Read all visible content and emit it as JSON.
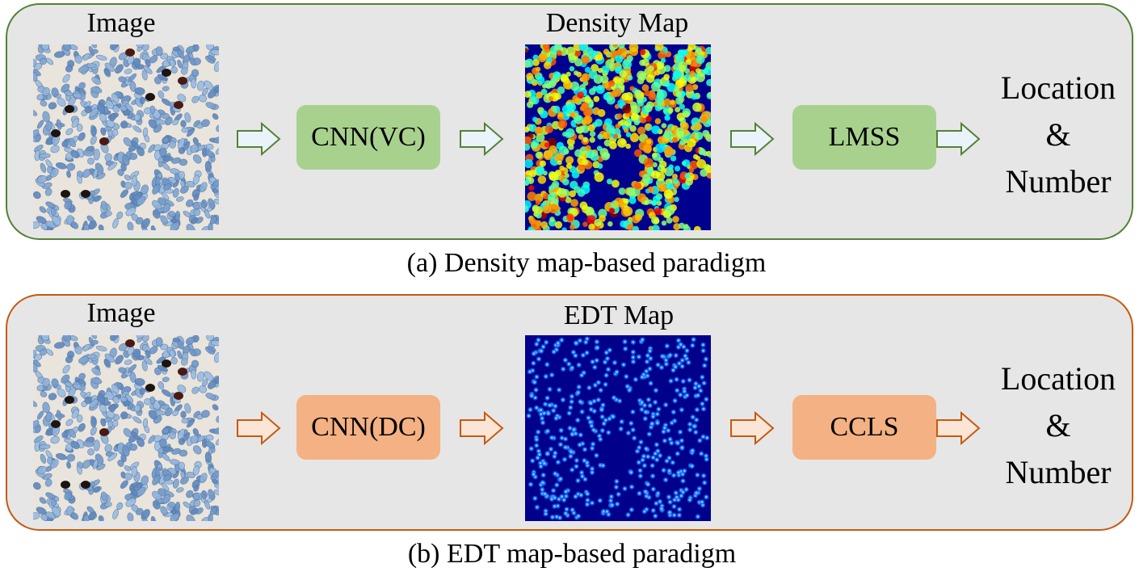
{
  "panel_a": {
    "image_label": "Image",
    "network_label": "CNN(VC)",
    "map_label": "Density Map",
    "post_label": "LMSS",
    "output_line1": "Location",
    "output_line2": "&",
    "output_line3": "Number",
    "caption": "(a) Density map-based paradigm",
    "border_color": "#548235",
    "block_color": "#a9d18e"
  },
  "panel_b": {
    "image_label": "Image",
    "network_label": "CNN(DC)",
    "map_label": "EDT Map",
    "post_label": "CCLS",
    "output_line1": "Location",
    "output_line2": "&",
    "output_line3": "Number",
    "caption": "(b) EDT map-based paradigm",
    "border_color": "#c55a11",
    "block_color": "#f4b183"
  }
}
